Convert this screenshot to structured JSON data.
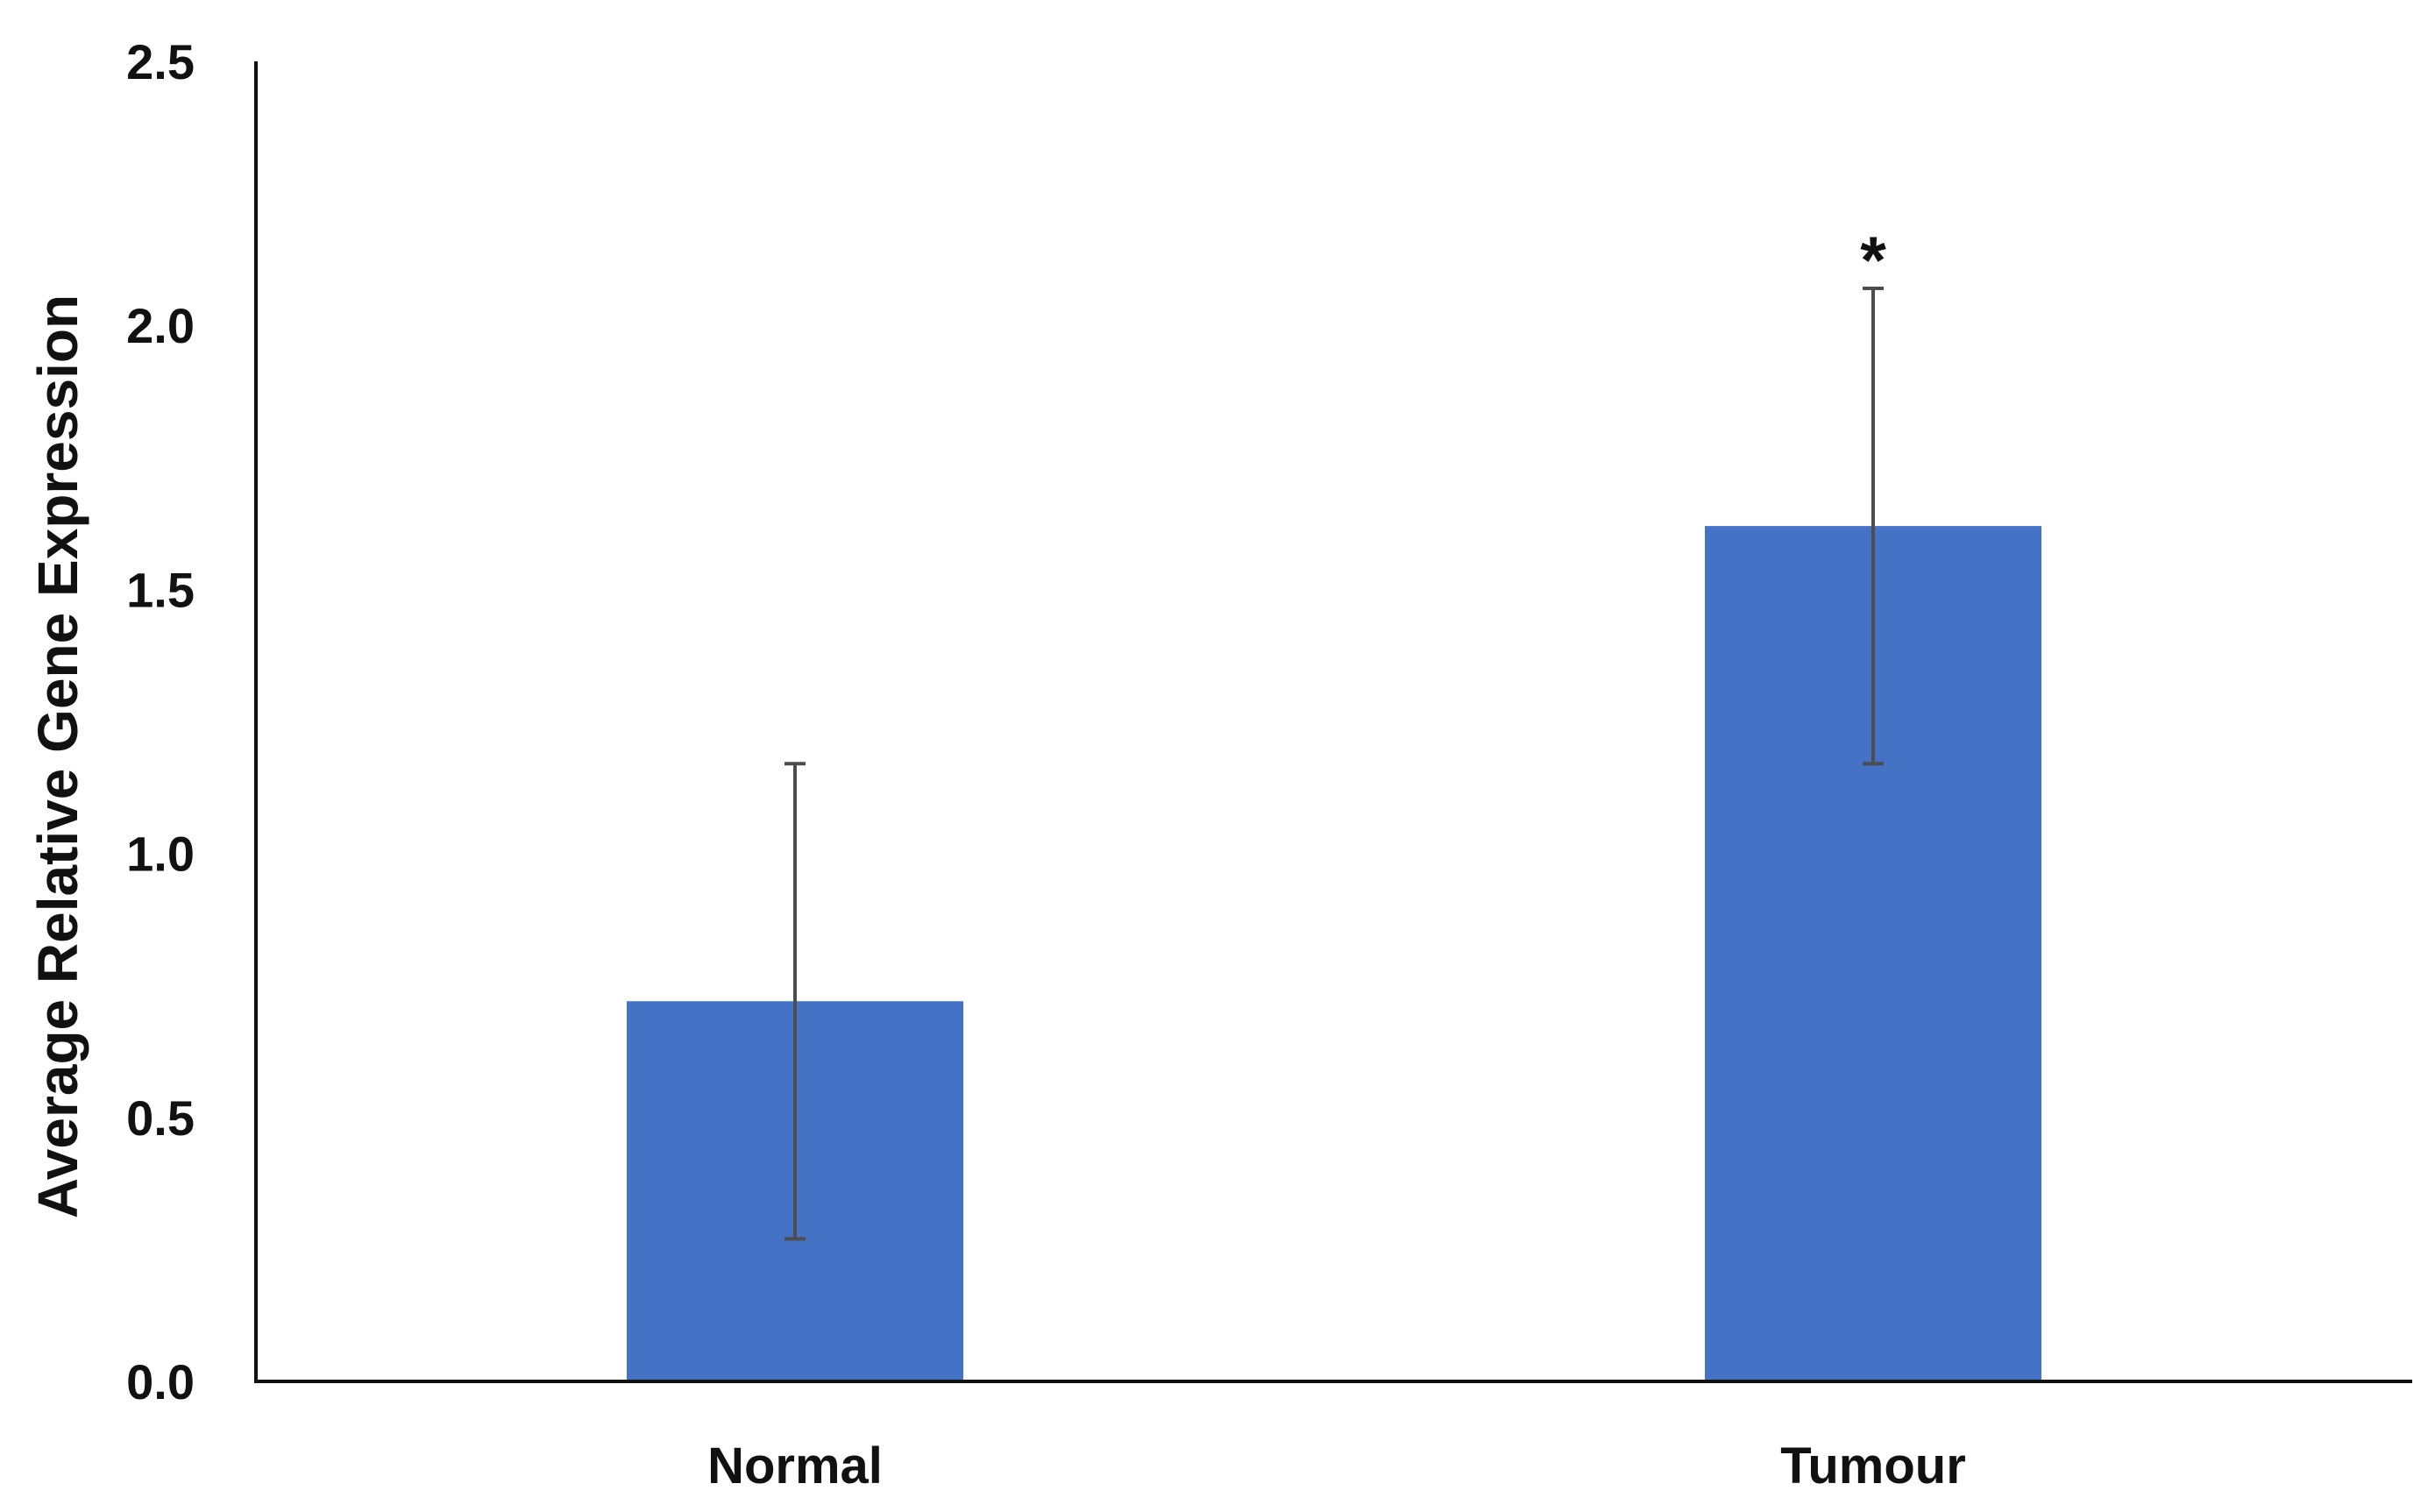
{
  "chart_data": {
    "type": "bar",
    "title": "",
    "xlabel": "",
    "ylabel": "Average Relative Gene Expression",
    "categories": [
      "Normal",
      "Tumour"
    ],
    "values": [
      0.72,
      1.62
    ],
    "error_plus": [
      0.45,
      0.45
    ],
    "error_minus": [
      0.45,
      0.45
    ],
    "annotations": [
      "",
      "*"
    ],
    "ylim": [
      0,
      2.5
    ],
    "yticks": [
      0.0,
      0.5,
      1.0,
      1.5,
      2.0,
      2.5
    ],
    "ytick_labels": [
      "0.0",
      "0.5",
      "1.0",
      "1.5",
      "2.0",
      "2.5"
    ],
    "grid": false,
    "legend": "none",
    "bar_color": "#4472c4",
    "error_color": "#4d4d4d",
    "axis_color": "#111111"
  }
}
